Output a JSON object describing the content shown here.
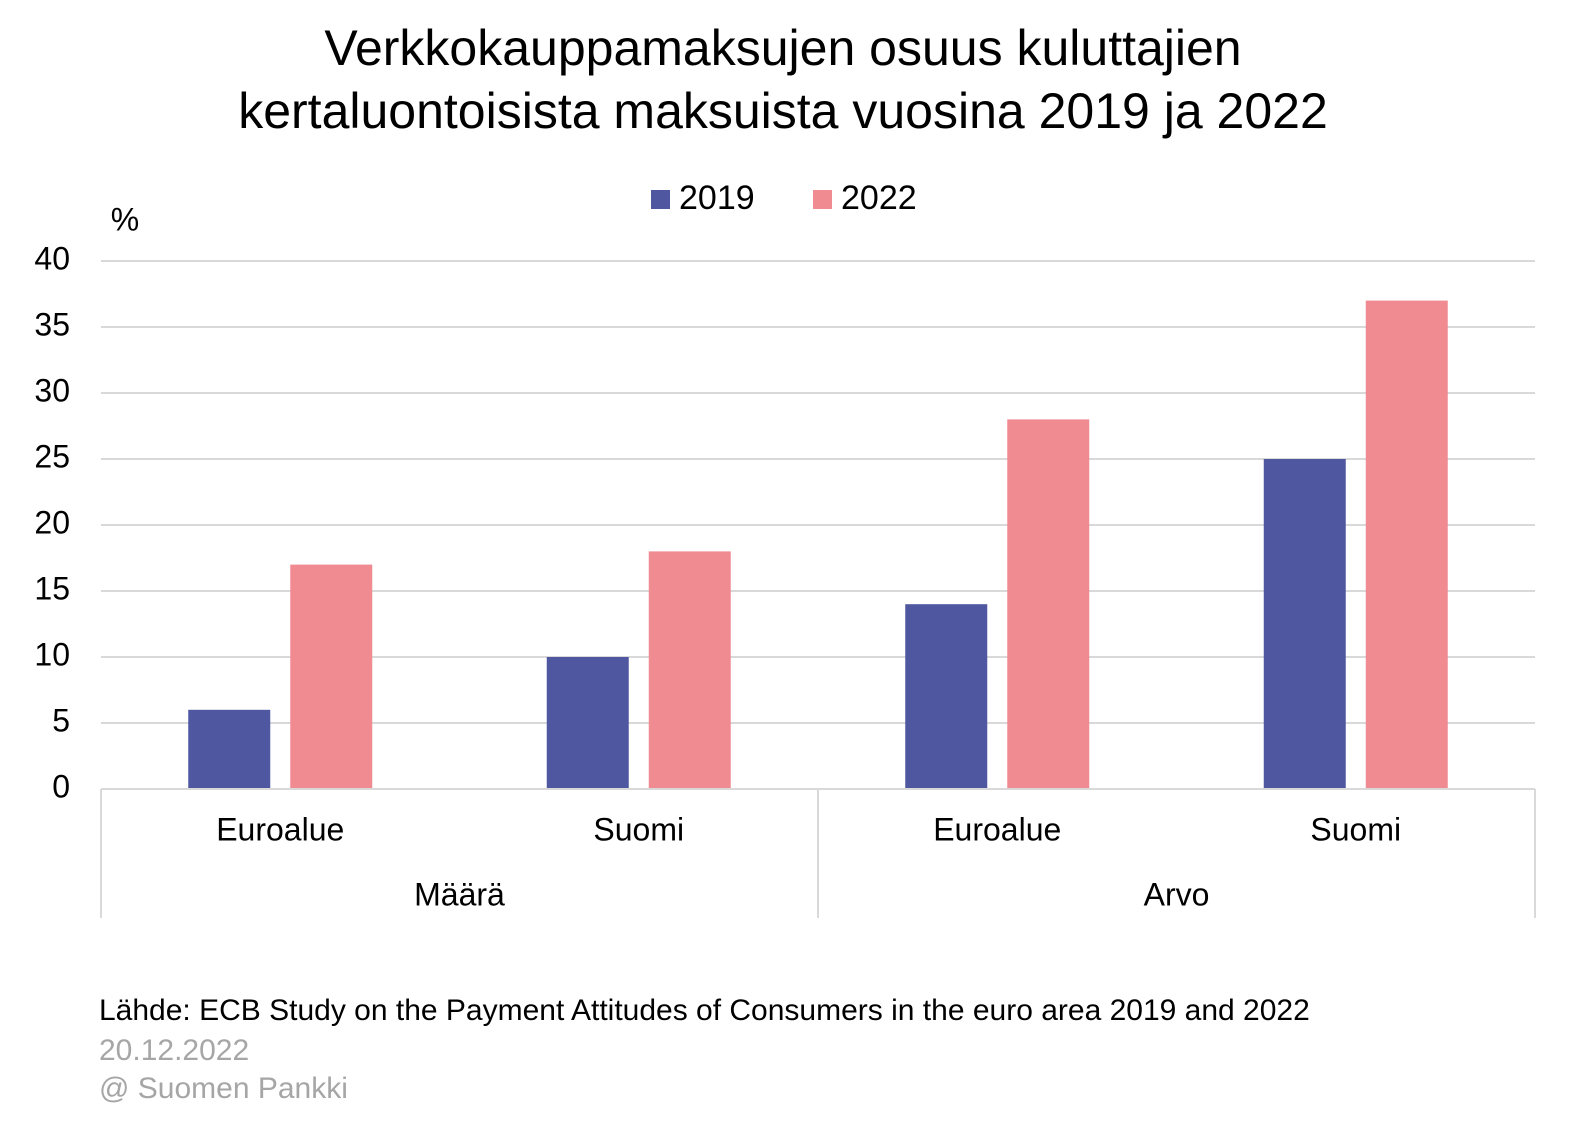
{
  "chart_data": {
    "type": "bar",
    "title": [
      "Verkkokauppamaksujen osuus kuluttajien",
      "kertaluontoisista maksuista vuosina 2019 ja 2022"
    ],
    "y_label": "%",
    "categories": [
      "Euroalue",
      "Suomi",
      "Euroalue",
      "Suomi"
    ],
    "groups": [
      "Määrä",
      "Arvo"
    ],
    "series": [
      {
        "name": "2019",
        "color": "#4e57a0",
        "values": [
          6,
          10,
          14,
          25
        ]
      },
      {
        "name": "2022",
        "color": "#f08b92",
        "values": [
          17,
          18,
          28,
          37
        ]
      }
    ],
    "ylim": [
      0,
      40
    ],
    "yticks": [
      0,
      5,
      10,
      15,
      20,
      25,
      30,
      35,
      40
    ],
    "grid": true,
    "source": "Lähde: ECB Study on the Payment Attitudes of Consumers in the euro area 2019 and 2022",
    "date": "20.12.2022",
    "copyright": "@ Suomen Pankki"
  }
}
